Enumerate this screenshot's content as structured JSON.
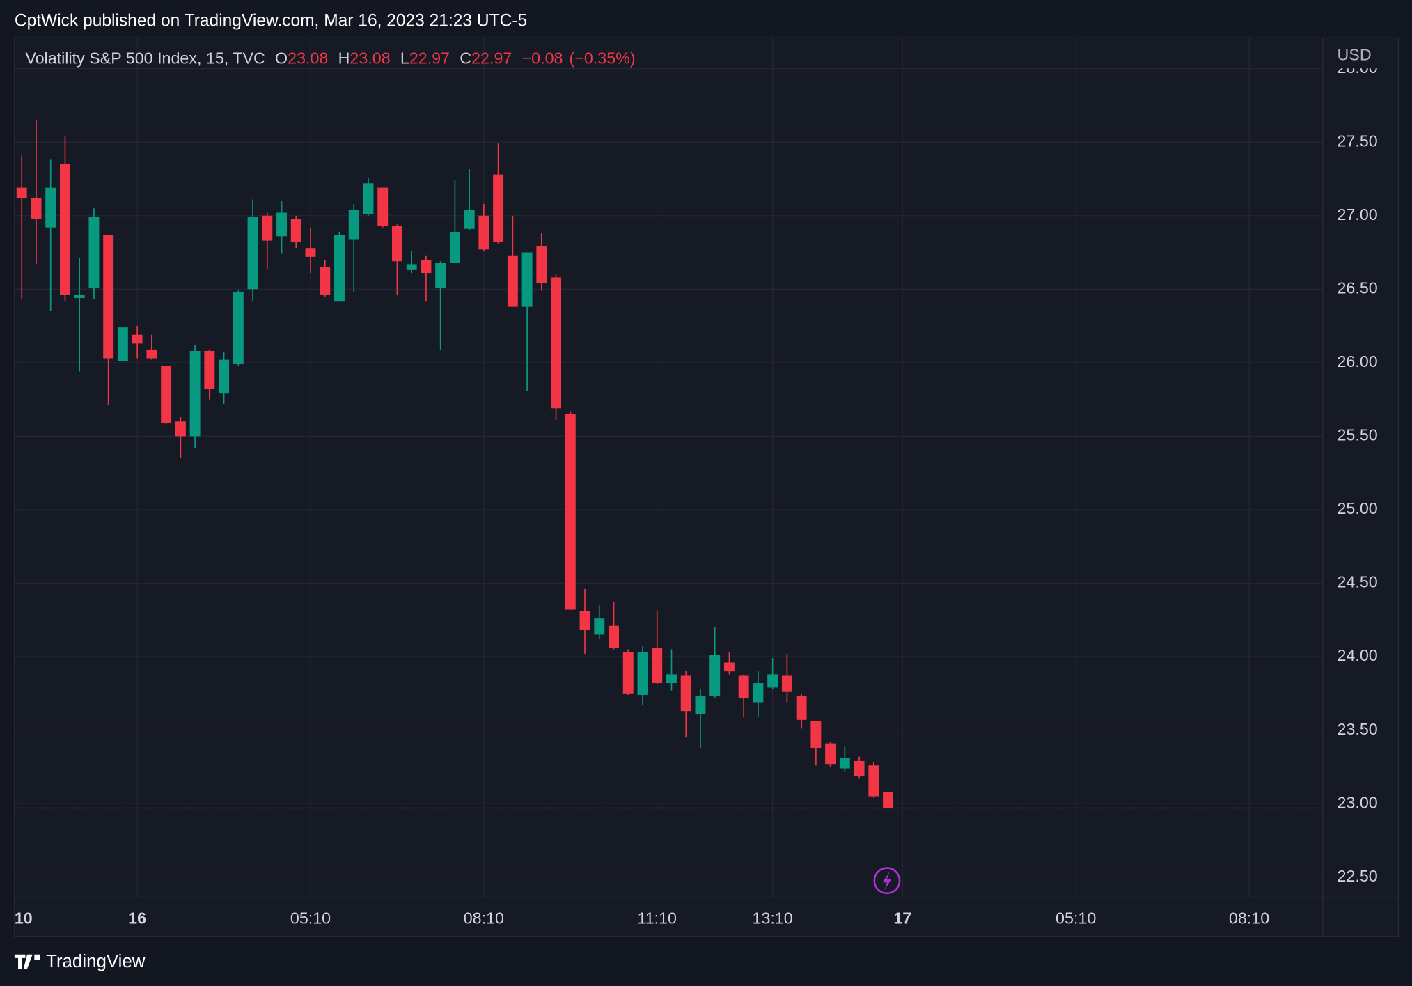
{
  "byline": "CptWick published on TradingView.com, Mar 16, 2023 21:23 UTC-5",
  "footer": "TradingView",
  "chart_data": {
    "type": "candlestick",
    "header": {
      "symbol": "Volatility S&P 500 Index, 15, TVC",
      "o_label": "O",
      "open": 23.08,
      "h_label": "H",
      "high": 23.08,
      "l_label": "L",
      "low": 22.97,
      "c_label": "C",
      "close": 22.97,
      "change": {
        "value": -0.08,
        "label": "−0.08"
      },
      "change_pct": {
        "value": -0.35,
        "label": "(−0.35%)"
      }
    },
    "currency": "USD",
    "up_color": "#089981",
    "down_color": "#f23645",
    "grid": true,
    "open": [
      27.19,
      27.12,
      26.92,
      27.35,
      26.44,
      26.51,
      26.87,
      26.01,
      26.19,
      26.09,
      25.98,
      25.6,
      25.5,
      26.08,
      25.79,
      25.99,
      26.5,
      27.0,
      26.86,
      26.98,
      26.78,
      26.65,
      26.42,
      26.84,
      27.01,
      27.19,
      26.93,
      26.63,
      26.7,
      26.51,
      26.68,
      26.91,
      27.0,
      27.28,
      26.73,
      26.38,
      26.79,
      26.58,
      25.65,
      24.31,
      24.15,
      24.21,
      24.03,
      23.74,
      24.06,
      23.82,
      23.87,
      23.61,
      23.73,
      23.96,
      23.87,
      23.69,
      23.79,
      23.87,
      23.73,
      23.56,
      23.41,
      23.24,
      23.29,
      23.26,
      23.08
    ],
    "high": [
      27.41,
      27.65,
      27.38,
      27.54,
      26.71,
      27.05,
      26.87,
      26.24,
      26.25,
      26.19,
      25.98,
      25.63,
      26.12,
      26.09,
      26.07,
      26.49,
      27.11,
      27.02,
      27.1,
      27.0,
      26.92,
      26.7,
      26.89,
      27.08,
      27.26,
      27.19,
      26.94,
      26.76,
      26.73,
      26.69,
      27.24,
      27.32,
      27.08,
      27.49,
      27.0,
      26.75,
      26.88,
      26.6,
      25.67,
      24.46,
      24.35,
      24.37,
      24.05,
      24.07,
      24.31,
      24.05,
      23.9,
      23.78,
      24.2,
      24.03,
      23.88,
      23.9,
      23.99,
      24.02,
      23.75,
      23.56,
      23.42,
      23.39,
      23.32,
      23.28,
      23.08
    ],
    "low": [
      26.43,
      26.67,
      26.35,
      26.42,
      25.94,
      26.43,
      25.71,
      26.01,
      26.03,
      26.02,
      25.58,
      25.35,
      25.42,
      25.75,
      25.72,
      25.98,
      26.42,
      26.64,
      26.74,
      26.78,
      26.61,
      26.45,
      26.42,
      26.48,
      27.0,
      26.92,
      26.46,
      26.61,
      26.42,
      26.09,
      26.68,
      26.9,
      26.76,
      26.81,
      26.38,
      25.81,
      26.49,
      25.61,
      24.32,
      24.02,
      24.12,
      24.05,
      23.74,
      23.67,
      23.81,
      23.77,
      23.45,
      23.38,
      23.72,
      23.88,
      23.59,
      23.59,
      23.78,
      23.69,
      23.51,
      23.26,
      23.25,
      23.22,
      23.17,
      23.04,
      22.97
    ],
    "close": [
      27.12,
      26.98,
      27.19,
      26.46,
      26.46,
      26.99,
      26.03,
      26.24,
      26.13,
      26.03,
      25.59,
      25.5,
      26.08,
      25.82,
      26.02,
      26.48,
      26.99,
      26.83,
      27.02,
      26.82,
      26.72,
      26.46,
      26.87,
      27.04,
      27.22,
      26.93,
      26.69,
      26.67,
      26.61,
      26.68,
      26.89,
      27.04,
      26.77,
      26.82,
      26.38,
      26.75,
      26.54,
      25.69,
      24.32,
      24.18,
      24.26,
      24.06,
      23.75,
      24.03,
      23.82,
      23.88,
      23.63,
      23.73,
      24.01,
      23.9,
      23.72,
      23.82,
      23.88,
      23.76,
      23.57,
      23.38,
      23.27,
      23.31,
      23.19,
      23.05,
      22.97
    ],
    "ylim": [
      22.36,
      28.21
    ],
    "yticks": [
      {
        "value": 22.5,
        "label": "22.50"
      },
      {
        "value": 23,
        "label": "23.00"
      },
      {
        "value": 23.5,
        "label": "23.50"
      },
      {
        "value": 24,
        "label": "24.00"
      },
      {
        "value": 24.5,
        "label": "24.50"
      },
      {
        "value": 25,
        "label": "25.00"
      },
      {
        "value": 25.5,
        "label": "25.50"
      },
      {
        "value": 26,
        "label": "26.00"
      },
      {
        "value": 26.5,
        "label": "26.50"
      },
      {
        "value": 27,
        "label": "27.00"
      },
      {
        "value": 27.5,
        "label": "27.50"
      },
      {
        "value": 28,
        "label": "28.00"
      }
    ],
    "xlim": [
      -0.5,
      90.1
    ],
    "xticks": [
      {
        "value": 0,
        "label": "10"
      },
      {
        "value": 8,
        "label": "16"
      },
      {
        "value": 20,
        "label": "05:10"
      },
      {
        "value": 32,
        "label": "08:10"
      },
      {
        "value": 44,
        "label": "11:10"
      },
      {
        "value": 52,
        "label": "13:10"
      },
      {
        "value": 61,
        "label": "17"
      },
      {
        "value": 73,
        "label": "05:10"
      },
      {
        "value": 85,
        "label": "08:10"
      }
    ]
  }
}
